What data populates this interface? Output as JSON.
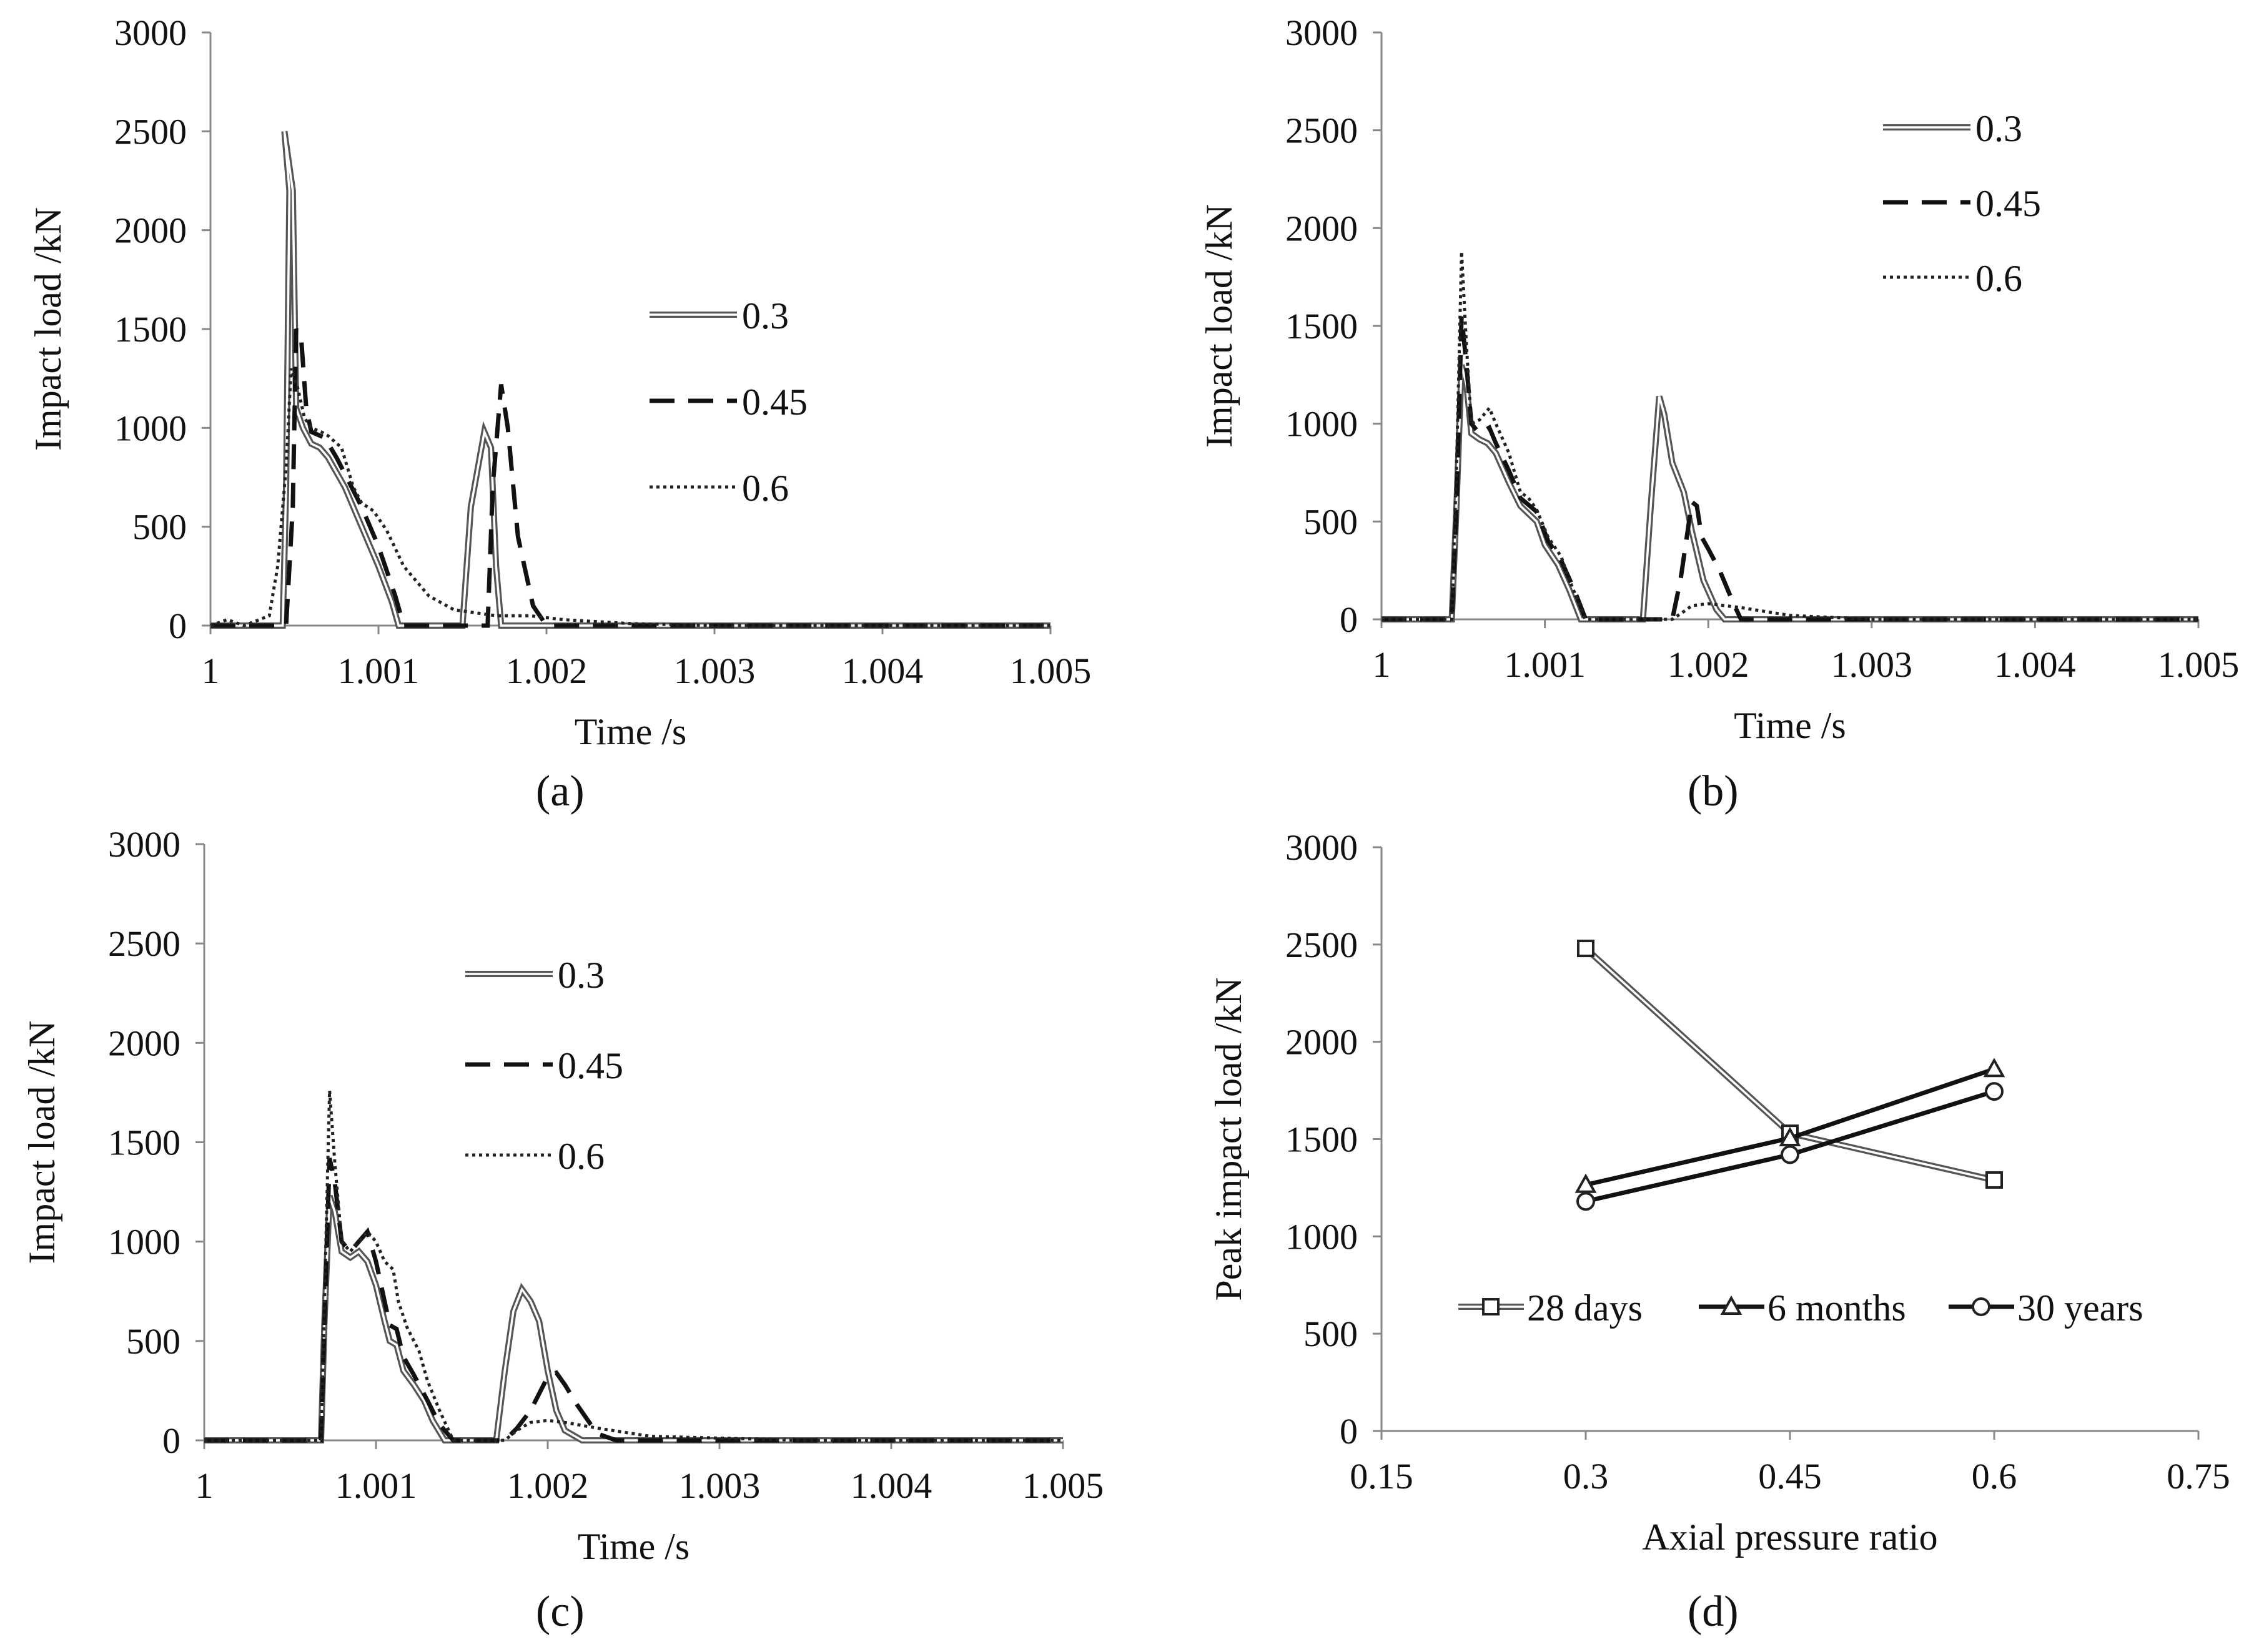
{
  "figure": {
    "caption_labels": [
      "(a)",
      "(b)",
      "(c)",
      "(d)"
    ]
  },
  "chart_data": [
    {
      "id": "a",
      "type": "line",
      "title": "",
      "xlabel": "Time /s",
      "ylabel": "Impact load /kN",
      "xlim": [
        1,
        1.005
      ],
      "ylim": [
        0,
        3000
      ],
      "xticks": [
        "1",
        "1.001",
        "1.002",
        "1.003",
        "1.004",
        "1.005"
      ],
      "yticks": [
        "0",
        "500",
        "1000",
        "1500",
        "2000",
        "2500",
        "3000"
      ],
      "legend": "right-center",
      "series": [
        {
          "name": "0.3",
          "style": "double",
          "points": [
            [
              1,
              0
            ],
            [
              1.00043,
              0
            ],
            [
              1.00045,
              700
            ],
            [
              1.00047,
              2200
            ],
            [
              1.00044,
              2500
            ],
            [
              1.00049,
              2200
            ],
            [
              1.00051,
              1100
            ],
            [
              1.00055,
              1000
            ],
            [
              1.0006,
              920
            ],
            [
              1.00065,
              900
            ],
            [
              1.0007,
              850
            ],
            [
              1.0008,
              700
            ],
            [
              1.0009,
              500
            ],
            [
              1.001,
              300
            ],
            [
              1.00108,
              120
            ],
            [
              1.00112,
              0
            ],
            [
              1.0015,
              0
            ],
            [
              1.00155,
              600
            ],
            [
              1.00163,
              980
            ],
            [
              1.00167,
              900
            ],
            [
              1.0017,
              300
            ],
            [
              1.00173,
              0
            ],
            [
              1.005,
              0
            ]
          ]
        },
        {
          "name": "0.45",
          "style": "dash",
          "points": [
            [
              1,
              0
            ],
            [
              1.00045,
              0
            ],
            [
              1.00049,
              600
            ],
            [
              1.00051,
              1500
            ],
            [
              1.00054,
              1450
            ],
            [
              1.00057,
              1100
            ],
            [
              1.0006,
              980
            ],
            [
              1.00068,
              950
            ],
            [
              1.00075,
              850
            ],
            [
              1.0009,
              600
            ],
            [
              1.001,
              400
            ],
            [
              1.0011,
              150
            ],
            [
              1.00115,
              0
            ],
            [
              1.00165,
              0
            ],
            [
              1.00168,
              700
            ],
            [
              1.00173,
              1220
            ],
            [
              1.00177,
              1000
            ],
            [
              1.00183,
              450
            ],
            [
              1.00192,
              100
            ],
            [
              1.002,
              0
            ],
            [
              1.005,
              0
            ]
          ]
        },
        {
          "name": "0.6",
          "style": "dot",
          "points": [
            [
              1,
              0
            ],
            [
              1.0001,
              30
            ],
            [
              1.0002,
              0
            ],
            [
              1.00035,
              50
            ],
            [
              1.0004,
              300
            ],
            [
              1.00045,
              800
            ],
            [
              1.00048,
              1300
            ],
            [
              1.00052,
              1200
            ],
            [
              1.00056,
              1050
            ],
            [
              1.0006,
              1000
            ],
            [
              1.00066,
              980
            ],
            [
              1.0007,
              960
            ],
            [
              1.00078,
              900
            ],
            [
              1.00085,
              700
            ],
            [
              1.0009,
              620
            ],
            [
              1.00097,
              580
            ],
            [
              1.00105,
              480
            ],
            [
              1.00115,
              300
            ],
            [
              1.0013,
              150
            ],
            [
              1.00145,
              80
            ],
            [
              1.0017,
              50
            ],
            [
              1.0019,
              50
            ],
            [
              1.0021,
              30
            ],
            [
              1.0025,
              10
            ],
            [
              1.003,
              0
            ],
            [
              1.005,
              0
            ]
          ]
        }
      ]
    },
    {
      "id": "b",
      "type": "line",
      "title": "",
      "xlabel": "Time /s",
      "ylabel": "Impact load /kN",
      "xlim": [
        1,
        1.005
      ],
      "ylim": [
        0,
        3000
      ],
      "xticks": [
        "1",
        "1.001",
        "1.002",
        "1.003",
        "1.004",
        "1.005"
      ],
      "yticks": [
        "0",
        "500",
        "1000",
        "1500",
        "2000",
        "2500",
        "3000"
      ],
      "legend": "top-right",
      "series": [
        {
          "name": "0.3",
          "style": "double",
          "points": [
            [
              1,
              0
            ],
            [
              1.00043,
              0
            ],
            [
              1.00046,
              600
            ],
            [
              1.00049,
              1300
            ],
            [
              1.00052,
              1200
            ],
            [
              1.00055,
              950
            ],
            [
              1.0006,
              920
            ],
            [
              1.00065,
              900
            ],
            [
              1.0007,
              850
            ],
            [
              1.00078,
              700
            ],
            [
              1.00085,
              580
            ],
            [
              1.00095,
              500
            ],
            [
              1.001,
              380
            ],
            [
              1.00108,
              280
            ],
            [
              1.00115,
              150
            ],
            [
              1.00122,
              0
            ],
            [
              1.0016,
              0
            ],
            [
              1.00165,
              600
            ],
            [
              1.0017,
              1140
            ],
            [
              1.00173,
              1050
            ],
            [
              1.00178,
              800
            ],
            [
              1.00185,
              650
            ],
            [
              1.0019,
              450
            ],
            [
              1.00197,
              200
            ],
            [
              1.00205,
              50
            ],
            [
              1.0021,
              0
            ],
            [
              1.005,
              0
            ]
          ]
        },
        {
          "name": "0.45",
          "style": "dash",
          "points": [
            [
              1,
              0
            ],
            [
              1.00043,
              0
            ],
            [
              1.00046,
              600
            ],
            [
              1.00049,
              1550
            ],
            [
              1.00052,
              1300
            ],
            [
              1.00055,
              1000
            ],
            [
              1.0006,
              950
            ],
            [
              1.00066,
              980
            ],
            [
              1.0007,
              900
            ],
            [
              1.00078,
              760
            ],
            [
              1.00085,
              620
            ],
            [
              1.00095,
              550
            ],
            [
              1.00102,
              400
            ],
            [
              1.0011,
              300
            ],
            [
              1.00118,
              150
            ],
            [
              1.00125,
              0
            ],
            [
              1.00178,
              0
            ],
            [
              1.00183,
              200
            ],
            [
              1.0019,
              600
            ],
            [
              1.00193,
              580
            ],
            [
              1.00196,
              420
            ],
            [
              1.002,
              360
            ],
            [
              1.00207,
              250
            ],
            [
              1.00215,
              90
            ],
            [
              1.0022,
              0
            ],
            [
              1.005,
              0
            ]
          ]
        },
        {
          "name": "0.6",
          "style": "dot",
          "points": [
            [
              1,
              0
            ],
            [
              1.00043,
              0
            ],
            [
              1.00046,
              800
            ],
            [
              1.00049,
              1880
            ],
            [
              1.00052,
              1400
            ],
            [
              1.00055,
              1000
            ],
            [
              1.0006,
              1020
            ],
            [
              1.00066,
              1080
            ],
            [
              1.0007,
              1000
            ],
            [
              1.00078,
              850
            ],
            [
              1.00085,
              650
            ],
            [
              1.0009,
              620
            ],
            [
              1.00095,
              560
            ],
            [
              1.00102,
              420
            ],
            [
              1.0011,
              320
            ],
            [
              1.00115,
              200
            ],
            [
              1.00125,
              0
            ],
            [
              1.00178,
              0
            ],
            [
              1.00185,
              40
            ],
            [
              1.0019,
              70
            ],
            [
              1.002,
              80
            ],
            [
              1.0022,
              60
            ],
            [
              1.0025,
              20
            ],
            [
              1.003,
              0
            ],
            [
              1.005,
              0
            ]
          ]
        }
      ]
    },
    {
      "id": "c",
      "type": "line",
      "title": "",
      "xlabel": "Time /s",
      "ylabel": "Impact load /kN",
      "xlim": [
        1,
        1.005
      ],
      "ylim": [
        0,
        3000
      ],
      "xticks": [
        "1",
        "1.001",
        "1.002",
        "1.003",
        "1.004",
        "1.005"
      ],
      "yticks": [
        "0",
        "500",
        "1000",
        "1500",
        "2000",
        "2500",
        "3000"
      ],
      "legend": "top-center",
      "series": [
        {
          "name": "0.3",
          "style": "double",
          "points": [
            [
              1,
              0
            ],
            [
              1.00068,
              0
            ],
            [
              1.0007,
              600
            ],
            [
              1.00073,
              1230
            ],
            [
              1.00076,
              1150
            ],
            [
              1.0008,
              950
            ],
            [
              1.00085,
              920
            ],
            [
              1.0009,
              950
            ],
            [
              1.00095,
              900
            ],
            [
              1.001,
              780
            ],
            [
              1.00105,
              600
            ],
            [
              1.00108,
              500
            ],
            [
              1.00112,
              480
            ],
            [
              1.00116,
              350
            ],
            [
              1.00122,
              280
            ],
            [
              1.00128,
              200
            ],
            [
              1.00133,
              100
            ],
            [
              1.0014,
              0
            ],
            [
              1.0017,
              0
            ],
            [
              1.00175,
              350
            ],
            [
              1.0018,
              650
            ],
            [
              1.00185,
              760
            ],
            [
              1.0019,
              700
            ],
            [
              1.00195,
              600
            ],
            [
              1.002,
              350
            ],
            [
              1.00205,
              150
            ],
            [
              1.0021,
              50
            ],
            [
              1.0022,
              0
            ],
            [
              1.005,
              0
            ]
          ]
        },
        {
          "name": "0.45",
          "style": "dash",
          "points": [
            [
              1,
              0
            ],
            [
              1.00068,
              0
            ],
            [
              1.0007,
              600
            ],
            [
              1.00073,
              1420
            ],
            [
              1.00076,
              1300
            ],
            [
              1.0008,
              1000
            ],
            [
              1.00085,
              950
            ],
            [
              1.0009,
              1000
            ],
            [
              1.00095,
              1050
            ],
            [
              1.001,
              900
            ],
            [
              1.00105,
              700
            ],
            [
              1.00108,
              580
            ],
            [
              1.00112,
              560
            ],
            [
              1.00116,
              420
            ],
            [
              1.00122,
              330
            ],
            [
              1.0013,
              200
            ],
            [
              1.00137,
              80
            ],
            [
              1.00145,
              0
            ],
            [
              1.00175,
              0
            ],
            [
              1.00182,
              60
            ],
            [
              1.0019,
              150
            ],
            [
              1.002,
              320
            ],
            [
              1.00205,
              340
            ],
            [
              1.0021,
              280
            ],
            [
              1.00217,
              180
            ],
            [
              1.00225,
              80
            ],
            [
              1.0023,
              30
            ],
            [
              1.0024,
              0
            ],
            [
              1.005,
              0
            ]
          ]
        },
        {
          "name": "0.6",
          "style": "dot",
          "points": [
            [
              1,
              0
            ],
            [
              1.00068,
              0
            ],
            [
              1.0007,
              700
            ],
            [
              1.00073,
              1760
            ],
            [
              1.00076,
              1400
            ],
            [
              1.0008,
              1000
            ],
            [
              1.00085,
              950
            ],
            [
              1.0009,
              1000
            ],
            [
              1.00095,
              1050
            ],
            [
              1.001,
              1000
            ],
            [
              1.00105,
              900
            ],
            [
              1.0011,
              860
            ],
            [
              1.00113,
              700
            ],
            [
              1.00118,
              570
            ],
            [
              1.00125,
              450
            ],
            [
              1.0013,
              300
            ],
            [
              1.00137,
              150
            ],
            [
              1.00145,
              0
            ],
            [
              1.00175,
              0
            ],
            [
              1.00182,
              50
            ],
            [
              1.0019,
              90
            ],
            [
              1.002,
              100
            ],
            [
              1.0021,
              90
            ],
            [
              1.0023,
              60
            ],
            [
              1.0026,
              20
            ],
            [
              1.0035,
              0
            ],
            [
              1.005,
              0
            ]
          ]
        }
      ]
    },
    {
      "id": "d",
      "type": "line",
      "title": "",
      "xlabel": "Axial pressure ratio",
      "ylabel": "Peak impact load /kN",
      "xlim": [
        0.15,
        0.75
      ],
      "ylim": [
        0,
        3000
      ],
      "xticks": [
        "0.15",
        "0.3",
        "0.45",
        "0.6",
        "0.75"
      ],
      "yticks": [
        "0",
        "500",
        "1000",
        "1500",
        "2000",
        "2500",
        "3000"
      ],
      "x": [
        0.3,
        0.45,
        0.6
      ],
      "legend": "bottom-center",
      "series": [
        {
          "name": "28 days",
          "marker": "square",
          "values": [
            2480,
            1530,
            1290
          ]
        },
        {
          "name": "6 months",
          "marker": "triangle",
          "values": [
            1265,
            1505,
            1860
          ]
        },
        {
          "name": "30 years",
          "marker": "circle",
          "values": [
            1180,
            1420,
            1745
          ]
        }
      ]
    }
  ]
}
